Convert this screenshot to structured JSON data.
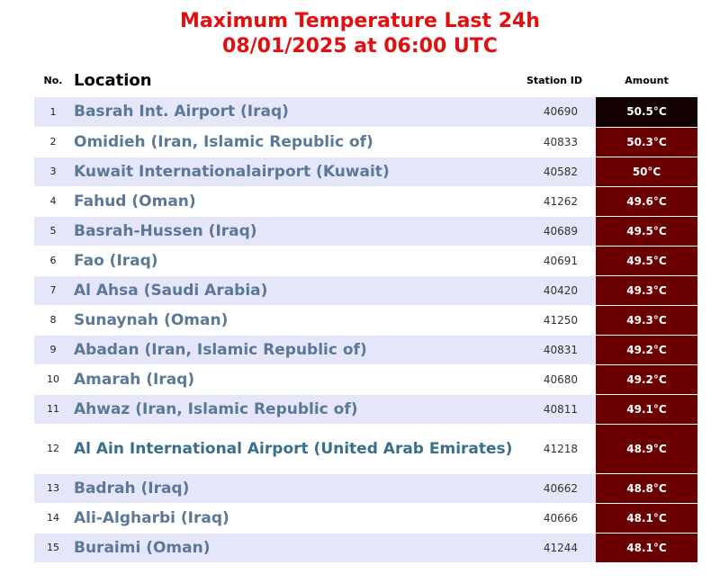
{
  "title": {
    "line1": "Maximum Temperature Last 24h",
    "line2": "08/01/2025 at 06:00 UTC"
  },
  "headers": {
    "no": "No.",
    "location": "Location",
    "station": "Station ID",
    "amount": "Amount"
  },
  "colors": {
    "title": "#e01010",
    "location": "#5b7896",
    "amount_top": "#130000",
    "amount": "#6a0000",
    "row_alt": "#e6e6fa"
  },
  "rows": [
    {
      "no": "1",
      "location": "Basrah Int. Airport (Iraq)",
      "station": "40690",
      "amount": "50.5°C"
    },
    {
      "no": "2",
      "location": "Omidieh (Iran, Islamic Republic of)",
      "station": "40833",
      "amount": "50.3°C"
    },
    {
      "no": "3",
      "location": "Kuwait Internationalairport (Kuwait)",
      "station": "40582",
      "amount": "50°C"
    },
    {
      "no": "4",
      "location": "Fahud (Oman)",
      "station": "41262",
      "amount": "49.6°C"
    },
    {
      "no": "5",
      "location": "Basrah-Hussen (Iraq)",
      "station": "40689",
      "amount": "49.5°C"
    },
    {
      "no": "6",
      "location": "Fao (Iraq)",
      "station": "40691",
      "amount": "49.5°C"
    },
    {
      "no": "7",
      "location": "Al Ahsa (Saudi Arabia)",
      "station": "40420",
      "amount": "49.3°C"
    },
    {
      "no": "8",
      "location": "Sunaynah (Oman)",
      "station": "41250",
      "amount": "49.3°C"
    },
    {
      "no": "9",
      "location": "Abadan (Iran, Islamic Republic of)",
      "station": "40831",
      "amount": "49.2°C"
    },
    {
      "no": "10",
      "location": "Amarah (Iraq)",
      "station": "40680",
      "amount": "49.2°C"
    },
    {
      "no": "11",
      "location": "Ahwaz (Iran, Islamic Republic of)",
      "station": "40811",
      "amount": "49.1°C"
    },
    {
      "no": "12",
      "location": "Al Ain International Airport (United Arab Emirates)",
      "station": "41218",
      "amount": "48.9°C"
    },
    {
      "no": "13",
      "location": "Badrah (Iraq)",
      "station": "40662",
      "amount": "48.8°C"
    },
    {
      "no": "14",
      "location": "Ali-Algharbi (Iraq)",
      "station": "40666",
      "amount": "48.1°C"
    },
    {
      "no": "15",
      "location": "Buraimi (Oman)",
      "station": "41244",
      "amount": "48.1°C"
    }
  ]
}
